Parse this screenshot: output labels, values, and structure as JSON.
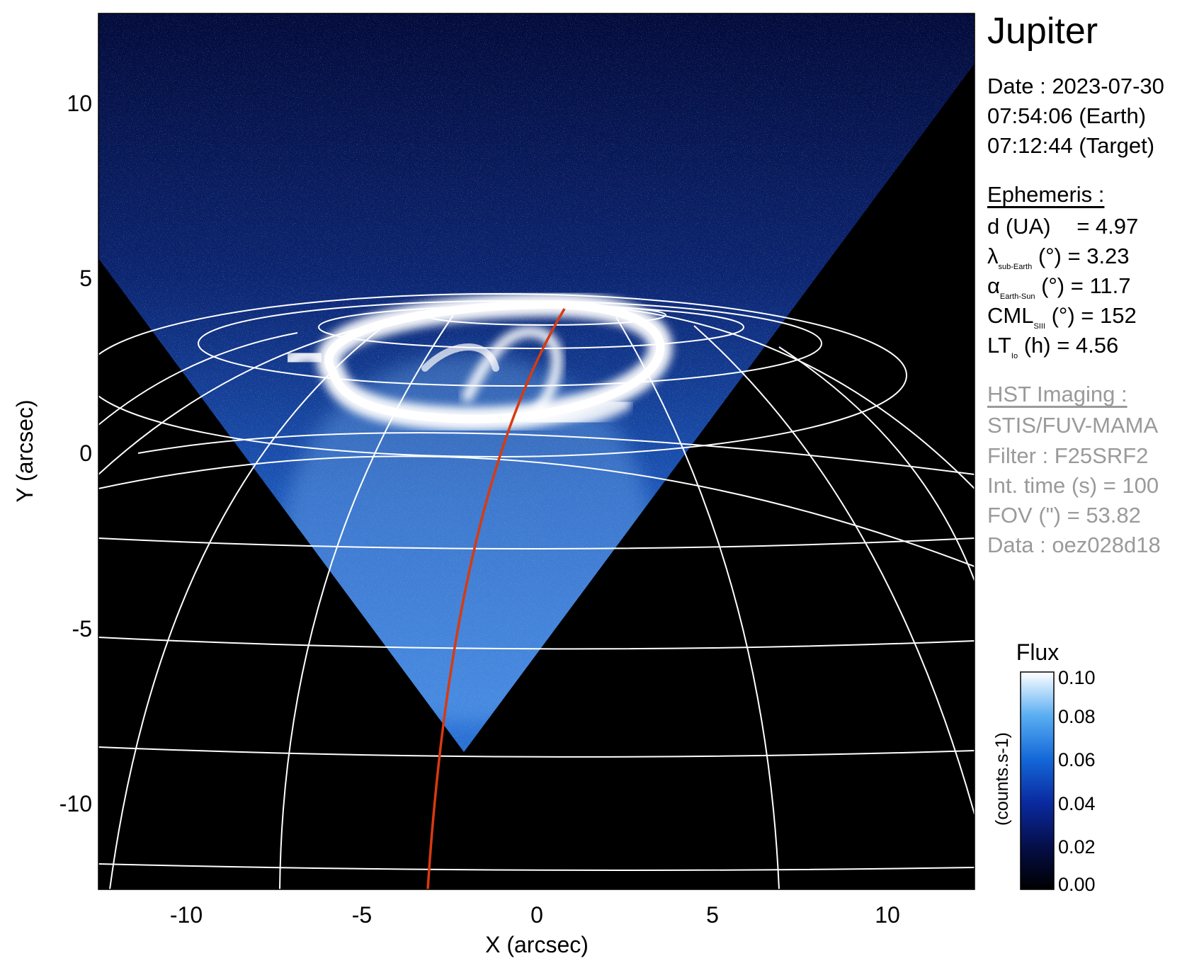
{
  "axes": {
    "x_label": "X (arcsec)",
    "y_label": "Y (arcsec)",
    "x_ticks": [
      "-10",
      "-5",
      "0",
      "5",
      "10"
    ],
    "y_ticks": [
      "10",
      "5",
      "0",
      "-5",
      "-10"
    ],
    "x_range": [
      -12.5,
      12.5
    ],
    "y_range": [
      -12.5,
      12.5
    ]
  },
  "panel": {
    "title": "Jupiter",
    "date_line": "Date : 2023-07-30",
    "earth_time": "07:54:06 (Earth)",
    "target_time": "07:12:44 (Target)",
    "ephemeris_header": "Ephemeris :",
    "d_label": "d (UA)",
    "d_value": "= 4.97",
    "lambda_symbol": "λ",
    "lambda_sub": "sub-Earth",
    "lambda_rest": "(°) = 3.23",
    "alpha_symbol": "α",
    "alpha_sub": "Earth-Sun",
    "alpha_rest": "(°) = 11.7",
    "cml_main": "CML",
    "cml_sub": "SIII",
    "cml_rest": "(°) = 152",
    "lt_main": "LT",
    "lt_sub": "Io",
    "lt_rest": "(h) = 4.56",
    "hst_header": "HST Imaging :",
    "instrument": "STIS/FUV-MAMA",
    "filter": "Filter : F25SRF2",
    "int_time": "Int. time (s) = 100",
    "fov": "FOV (\") = 53.82",
    "data_id": "Data : oez028d18"
  },
  "colorbar": {
    "title": "Flux",
    "unit_label": "(counts.s-1)",
    "ticks": [
      "0.10",
      "0.08",
      "0.06",
      "0.04",
      "0.02",
      "0.00"
    ],
    "range": [
      0.0,
      0.1
    ]
  },
  "colors": {
    "background": "#000000",
    "emission_low": "#0a1f8a",
    "emission_mid": "#2f7fe0",
    "emission_high": "#ffffff",
    "grid": "#ffffff",
    "footprint_line": "#d83a10"
  }
}
